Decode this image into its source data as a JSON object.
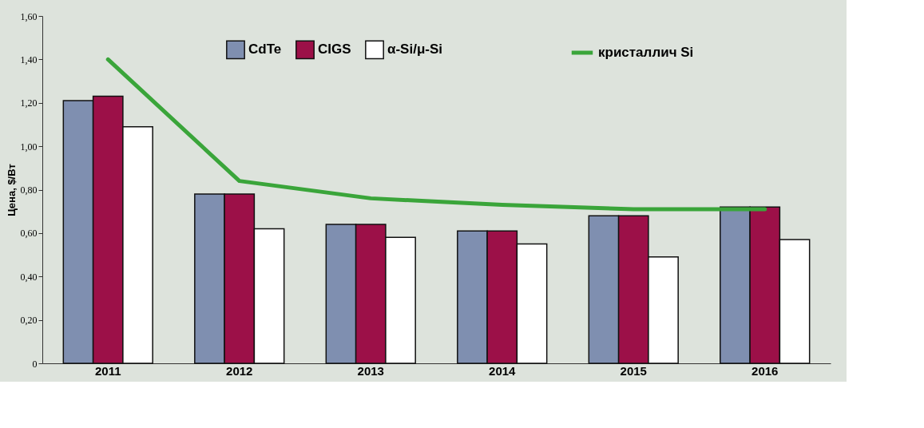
{
  "chart_data": {
    "type": "bar",
    "ylabel": "Цена, $/Вт",
    "categories": [
      "2011",
      "2012",
      "2013",
      "2014",
      "2015",
      "2016"
    ],
    "series": [
      {
        "name": "CdTe",
        "color": "#7f8fb0",
        "values": [
          1.21,
          0.78,
          0.64,
          0.61,
          0.68,
          0.72
        ]
      },
      {
        "name": "CIGS",
        "color": "#9c1048",
        "values": [
          1.23,
          0.78,
          0.64,
          0.61,
          0.68,
          0.72
        ]
      },
      {
        "name": "α-Si/μ-Si",
        "color": "#ffffff",
        "values": [
          1.09,
          0.62,
          0.58,
          0.55,
          0.49,
          0.57
        ]
      },
      {
        "name": "кристаллич Si",
        "type": "line",
        "color": "#3aa53a",
        "values": [
          1.4,
          0.84,
          0.76,
          0.73,
          0.71,
          0.71
        ]
      }
    ],
    "ylim": [
      0,
      1.6
    ],
    "yticks": [
      0,
      {
        "value": 0.2,
        "label": "0,20"
      },
      {
        "value": 0.4,
        "label": "0,40"
      },
      {
        "value": 0.6,
        "label": "0,60"
      },
      {
        "value": 0.8,
        "label": "0,80"
      },
      {
        "value": 1.0,
        "label": "1,00"
      },
      {
        "value": 1.2,
        "label": "1,20"
      },
      {
        "value": 1.4,
        "label": "1,40"
      },
      {
        "value": 1.6,
        "label": "1,60"
      }
    ],
    "grid": false,
    "legend": "top",
    "marker": "none"
  }
}
